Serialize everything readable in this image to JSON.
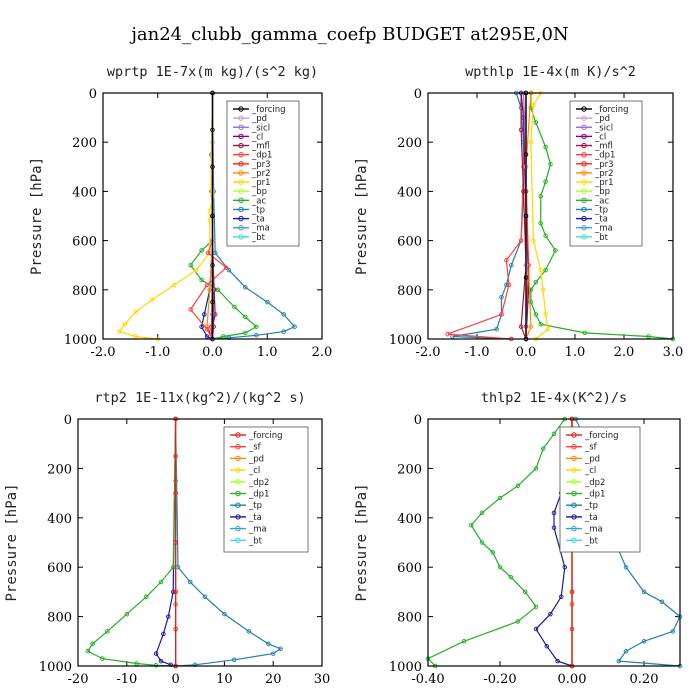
{
  "title": "jan24_clubb_gamma_coefp  BUDGET at295E,0N",
  "chart_data": [
    {
      "type": "line",
      "title": "wprtp  1E-7x(m kg)/(s^2 kg)",
      "ylabel": "Pressure [hPa]",
      "xlim": [
        -2.0,
        2.0
      ],
      "ylim": [
        1000,
        0
      ],
      "xticks": [
        "-2.0",
        "-1.0",
        "0.0",
        "1.0",
        "2.0"
      ],
      "yticks": [
        "0",
        "200",
        "400",
        "600",
        "800",
        "1000"
      ],
      "series": [
        {
          "name": "_forcing",
          "color": "#000000",
          "x": [
            0.0,
            0.0,
            0.0,
            0.0,
            0.0,
            0.0,
            0.0
          ],
          "y": [
            0,
            150,
            300,
            500,
            700,
            850,
            1000
          ]
        },
        {
          "name": "_pd",
          "color": "#c8a2c8",
          "x": [
            0.0,
            0.0,
            0.0,
            0.0,
            0.0,
            0.0
          ],
          "y": [
            0,
            200,
            400,
            600,
            800,
            1000
          ]
        },
        {
          "name": "_sicl",
          "color": "#9370db",
          "x": [
            0.0,
            0.0,
            0.0,
            0.0,
            0.0
          ],
          "y": [
            0,
            300,
            600,
            900,
            1000
          ]
        },
        {
          "name": "_cl",
          "color": "#800080",
          "x": [
            0.0,
            0.0,
            0.01,
            0.02,
            0.0
          ],
          "y": [
            0,
            500,
            800,
            950,
            1000
          ]
        },
        {
          "name": "_mfl",
          "color": "#a0143c",
          "x": [
            0.0,
            0.0,
            0.03,
            0.05,
            -0.02,
            0.0
          ],
          "y": [
            0,
            600,
            800,
            900,
            970,
            1000
          ]
        },
        {
          "name": "_dp1",
          "color": "#ff4040",
          "x": [
            0.0,
            0.0,
            -0.08,
            0.25,
            -0.1,
            -0.4,
            -0.1,
            0.0
          ],
          "y": [
            0,
            600,
            650,
            710,
            780,
            880,
            960,
            1000
          ]
        },
        {
          "name": "_pr3",
          "color": "#ff2020",
          "x": [
            0.0,
            0.0,
            0.02,
            -0.02,
            0.0
          ],
          "y": [
            0,
            600,
            800,
            950,
            1000
          ]
        },
        {
          "name": "_pr2",
          "color": "#ff8c00",
          "x": [
            0.0,
            0.0,
            -0.05,
            -0.1,
            0.0
          ],
          "y": [
            0,
            600,
            800,
            950,
            1000
          ]
        },
        {
          "name": "_pr1",
          "color": "#ffd700",
          "x": [
            0.0,
            -0.03,
            0.0,
            -0.05,
            -0.05,
            -0.05,
            -0.3,
            -0.7,
            -1.1,
            -1.4,
            -1.6,
            -1.7,
            -1.4,
            -1.0
          ],
          "y": [
            0,
            400,
            420,
            480,
            520,
            650,
            720,
            780,
            840,
            890,
            940,
            970,
            990,
            1000
          ]
        },
        {
          "name": "_bp",
          "color": "#adff2f",
          "x": [
            0.0,
            0.0,
            0.0,
            0.0
          ],
          "y": [
            0,
            400,
            800,
            1000
          ]
        },
        {
          "name": "_ac",
          "color": "#22b022",
          "x": [
            0.0,
            -0.02,
            -0.02,
            0.0,
            -0.2,
            -0.4,
            -0.2,
            0.1,
            0.4,
            0.6,
            0.8,
            0.6,
            0.2,
            0.0
          ],
          "y": [
            0,
            250,
            400,
            600,
            640,
            700,
            760,
            800,
            870,
            910,
            950,
            975,
            990,
            1000
          ]
        },
        {
          "name": "_tp",
          "color": "#2080b0",
          "x": [
            0.0,
            0.02,
            0.05,
            0.3,
            0.6,
            1.0,
            1.3,
            1.5,
            1.3,
            0.8,
            0.3,
            0.0
          ],
          "y": [
            0,
            400,
            650,
            720,
            790,
            850,
            900,
            950,
            970,
            985,
            995,
            1000
          ]
        },
        {
          "name": "_ta",
          "color": "#1a1aa0",
          "x": [
            0.0,
            0.0,
            -0.05,
            -0.15,
            -0.2,
            -0.1,
            0.0
          ],
          "y": [
            0,
            600,
            800,
            900,
            950,
            990,
            1000
          ]
        },
        {
          "name": "_ma",
          "color": "#40a0d0",
          "x": [
            0.0,
            0.0,
            -0.02,
            0.0
          ],
          "y": [
            0,
            600,
            950,
            1000
          ]
        },
        {
          "name": "_bt",
          "color": "#40e0d0",
          "x": [
            0.0,
            0.0,
            0.0
          ],
          "y": [
            0,
            500,
            1000
          ]
        }
      ]
    },
    {
      "type": "line",
      "title": "wpthlp  1E-4x(m K)/s^2",
      "ylabel": "Pressure [hPa]",
      "xlim": [
        -2.0,
        3.0
      ],
      "ylim": [
        1000,
        0
      ],
      "xticks": [
        "-2.0",
        "-1.0",
        "0.0",
        "1.0",
        "2.0",
        "3.0"
      ],
      "yticks": [
        "0",
        "200",
        "400",
        "600",
        "800",
        "1000"
      ],
      "series": [
        {
          "name": "_forcing",
          "color": "#000000",
          "x": [
            0.0,
            0.0,
            0.0,
            0.0,
            0.0
          ],
          "y": [
            0,
            250,
            500,
            750,
            1000
          ]
        },
        {
          "name": "_pd",
          "color": "#c8a2c8",
          "x": [
            0.0,
            0.0,
            0.0,
            0.0
          ],
          "y": [
            0,
            300,
            700,
            1000
          ]
        },
        {
          "name": "_sicl",
          "color": "#9370db",
          "x": [
            -0.05,
            0.0,
            0.0,
            0.0
          ],
          "y": [
            0,
            300,
            700,
            1000
          ]
        },
        {
          "name": "_cl",
          "color": "#800080",
          "x": [
            -0.1,
            -0.05,
            0.0,
            0.0
          ],
          "y": [
            0,
            100,
            500,
            1000
          ]
        },
        {
          "name": "_mfl",
          "color": "#a0143c",
          "x": [
            -0.1,
            -0.1,
            -0.05,
            0.0,
            -0.1,
            0.0
          ],
          "y": [
            0,
            150,
            400,
            700,
            950,
            1000
          ]
        },
        {
          "name": "_dp1",
          "color": "#ff4040",
          "x": [
            0.0,
            -0.05,
            -0.1,
            -0.4,
            -0.35,
            -0.5,
            -1.6,
            -0.3
          ],
          "y": [
            0,
            300,
            600,
            680,
            780,
            900,
            980,
            1000
          ]
        },
        {
          "name": "_pr3",
          "color": "#ff2020",
          "x": [
            0.0,
            0.0,
            0.05,
            0.0,
            0.0
          ],
          "y": [
            0,
            400,
            700,
            950,
            1000
          ]
        },
        {
          "name": "_pr2",
          "color": "#ff8c00",
          "x": [
            0.1,
            0.0,
            0.05,
            0.1,
            0.0
          ],
          "y": [
            0,
            300,
            700,
            950,
            1000
          ]
        },
        {
          "name": "_pr1",
          "color": "#ffd700",
          "x": [
            0.3,
            0.15,
            0.1,
            0.15,
            0.3,
            0.35,
            0.4,
            0.45,
            0.2
          ],
          "y": [
            0,
            50,
            200,
            600,
            720,
            800,
            900,
            960,
            1000
          ]
        },
        {
          "name": "_bp",
          "color": "#adff2f",
          "x": [
            0.0,
            0.0,
            0.0
          ],
          "y": [
            0,
            500,
            1000
          ]
        },
        {
          "name": "_ac",
          "color": "#22b022",
          "x": [
            0.1,
            0.1,
            0.2,
            0.4,
            0.5,
            0.4,
            0.3,
            0.3,
            0.4,
            0.6,
            0.4,
            0.2,
            0.1,
            0.1,
            0.2,
            0.3,
            1.2,
            2.5,
            3.0
          ],
          "y": [
            0,
            60,
            120,
            220,
            290,
            360,
            420,
            530,
            580,
            640,
            720,
            770,
            800,
            850,
            900,
            940,
            975,
            990,
            1000
          ]
        },
        {
          "name": "_tp",
          "color": "#2080b0",
          "x": [
            -0.2,
            -0.1,
            -0.05,
            -0.05,
            -0.1,
            -0.3,
            -0.4,
            -0.5,
            -0.5,
            -0.6,
            -1.5,
            -0.3
          ],
          "y": [
            0,
            60,
            200,
            400,
            600,
            700,
            780,
            830,
            900,
            960,
            990,
            1000
          ]
        },
        {
          "name": "_ta",
          "color": "#1a1aa0",
          "x": [
            0.0,
            0.0,
            0.05,
            0.0
          ],
          "y": [
            0,
            400,
            800,
            1000
          ]
        },
        {
          "name": "_ma",
          "color": "#40a0d0",
          "x": [
            0.0,
            0.0,
            0.0
          ],
          "y": [
            0,
            500,
            1000
          ]
        },
        {
          "name": "_bt",
          "color": "#40e0d0",
          "x": [
            0.0,
            0.0,
            0.0
          ],
          "y": [
            0,
            500,
            1000
          ]
        }
      ]
    },
    {
      "type": "line",
      "title": "rtp2  1E-11x(kg^2)/(kg^2 s)",
      "ylabel": "Pressure [hPa]",
      "xlim": [
        -20,
        30
      ],
      "ylim": [
        1000,
        0
      ],
      "xticks": [
        "-20",
        "-10",
        "0",
        "10",
        "20",
        "30"
      ],
      "yticks": [
        "0",
        "200",
        "400",
        "600",
        "800",
        "1000"
      ],
      "series": [
        {
          "name": "_forcing",
          "color": "#e02020",
          "x": [
            0,
            0,
            0,
            0,
            0,
            0,
            0
          ],
          "y": [
            0,
            150,
            300,
            500,
            700,
            850,
            1000
          ]
        },
        {
          "name": "_sf",
          "color": "#ff4040",
          "x": [
            0,
            0,
            0,
            0,
            0
          ],
          "y": [
            0,
            250,
            500,
            750,
            1000
          ]
        },
        {
          "name": "_pd",
          "color": "#ff8c00",
          "x": [
            0,
            0,
            0,
            0
          ],
          "y": [
            0,
            300,
            700,
            1000
          ]
        },
        {
          "name": "_cl",
          "color": "#ffd700",
          "x": [
            0,
            0,
            0,
            0
          ],
          "y": [
            0,
            300,
            700,
            1000
          ]
        },
        {
          "name": "_dp2",
          "color": "#adff2f",
          "x": [
            0,
            0,
            0
          ],
          "y": [
            0,
            500,
            1000
          ]
        },
        {
          "name": "_dp1",
          "color": "#22b022",
          "x": [
            0,
            -0.5,
            -3,
            -6,
            -10,
            -14,
            -17,
            -18,
            -15,
            -8,
            -4,
            0
          ],
          "y": [
            0,
            600,
            660,
            720,
            790,
            860,
            910,
            940,
            970,
            990,
            997,
            1000
          ]
        },
        {
          "name": "_tp",
          "color": "#2080b0",
          "x": [
            0,
            0.5,
            3,
            6,
            10,
            15,
            19,
            21.5,
            20,
            12,
            4,
            0
          ],
          "y": [
            0,
            600,
            660,
            720,
            790,
            860,
            910,
            930,
            950,
            975,
            995,
            1000
          ]
        },
        {
          "name": "_ta",
          "color": "#1a1aa0",
          "x": [
            0,
            -0.5,
            -1.5,
            -2.5,
            -4,
            -3,
            -1,
            0
          ],
          "y": [
            0,
            700,
            800,
            870,
            950,
            980,
            995,
            1000
          ]
        },
        {
          "name": "_ma",
          "color": "#40a0d0",
          "x": [
            0,
            0,
            0
          ],
          "y": [
            0,
            500,
            1000
          ]
        },
        {
          "name": "_bt",
          "color": "#40e0d0",
          "x": [
            0,
            0,
            0
          ],
          "y": [
            0,
            500,
            1000
          ]
        }
      ]
    },
    {
      "type": "line",
      "title": "thlp2  1E-4x(K^2)/s",
      "ylabel": "Pressure [hPa]",
      "xlim": [
        -0.4,
        0.3
      ],
      "ylim": [
        1000,
        0
      ],
      "xticks": [
        "-0.40",
        "-0.20",
        "0.00",
        "0.20"
      ],
      "yticks": [
        "0",
        "200",
        "400",
        "600",
        "800",
        "1000"
      ],
      "series": [
        {
          "name": "_forcing",
          "color": "#e02020",
          "x": [
            0,
            0,
            0,
            0,
            0,
            0,
            0
          ],
          "y": [
            0,
            150,
            300,
            500,
            700,
            850,
            1000
          ]
        },
        {
          "name": "_sf",
          "color": "#ff4040",
          "x": [
            0,
            0,
            0,
            0,
            0
          ],
          "y": [
            0,
            250,
            500,
            750,
            1000
          ]
        },
        {
          "name": "_pd",
          "color": "#ff8c00",
          "x": [
            0,
            0,
            0,
            0
          ],
          "y": [
            0,
            300,
            700,
            1000
          ]
        },
        {
          "name": "_cl",
          "color": "#ffd700",
          "x": [
            0,
            0,
            0,
            0
          ],
          "y": [
            0,
            300,
            700,
            1000
          ]
        },
        {
          "name": "_dp2",
          "color": "#adff2f",
          "x": [
            0,
            0,
            0
          ],
          "y": [
            0,
            500,
            1000
          ]
        },
        {
          "name": "_dp1",
          "color": "#22b022",
          "x": [
            -0.02,
            -0.05,
            -0.08,
            -0.1,
            -0.15,
            -0.2,
            -0.25,
            -0.28,
            -0.25,
            -0.22,
            -0.2,
            -0.17,
            -0.13,
            -0.1,
            -0.15,
            -0.3,
            -0.4,
            -0.38
          ],
          "y": [
            0,
            60,
            120,
            200,
            270,
            320,
            380,
            430,
            500,
            540,
            600,
            640,
            700,
            760,
            820,
            900,
            970,
            1000
          ]
        },
        {
          "name": "_tp",
          "color": "#2080b0",
          "x": [
            0.01,
            0.03,
            0.05,
            0.07,
            0.09,
            0.12,
            0.12,
            0.15,
            0.2,
            0.25,
            0.3,
            0.28,
            0.2,
            0.15,
            0.13,
            0.3
          ],
          "y": [
            0,
            60,
            120,
            200,
            300,
            400,
            500,
            600,
            700,
            740,
            800,
            860,
            900,
            940,
            980,
            1000
          ]
        },
        {
          "name": "_ta",
          "color": "#1a1aa0",
          "x": [
            0,
            -0.01,
            -0.03,
            -0.05,
            -0.05,
            -0.02,
            -0.03,
            -0.06,
            -0.1,
            -0.07,
            -0.04,
            0
          ],
          "y": [
            0,
            200,
            300,
            380,
            440,
            600,
            720,
            790,
            850,
            920,
            980,
            1000
          ]
        },
        {
          "name": "_ma",
          "color": "#40a0d0",
          "x": [
            0,
            0,
            0
          ],
          "y": [
            0,
            500,
            1000
          ]
        },
        {
          "name": "_bt",
          "color": "#40e0d0",
          "x": [
            0,
            0,
            0
          ],
          "y": [
            0,
            500,
            1000
          ]
        }
      ]
    }
  ]
}
